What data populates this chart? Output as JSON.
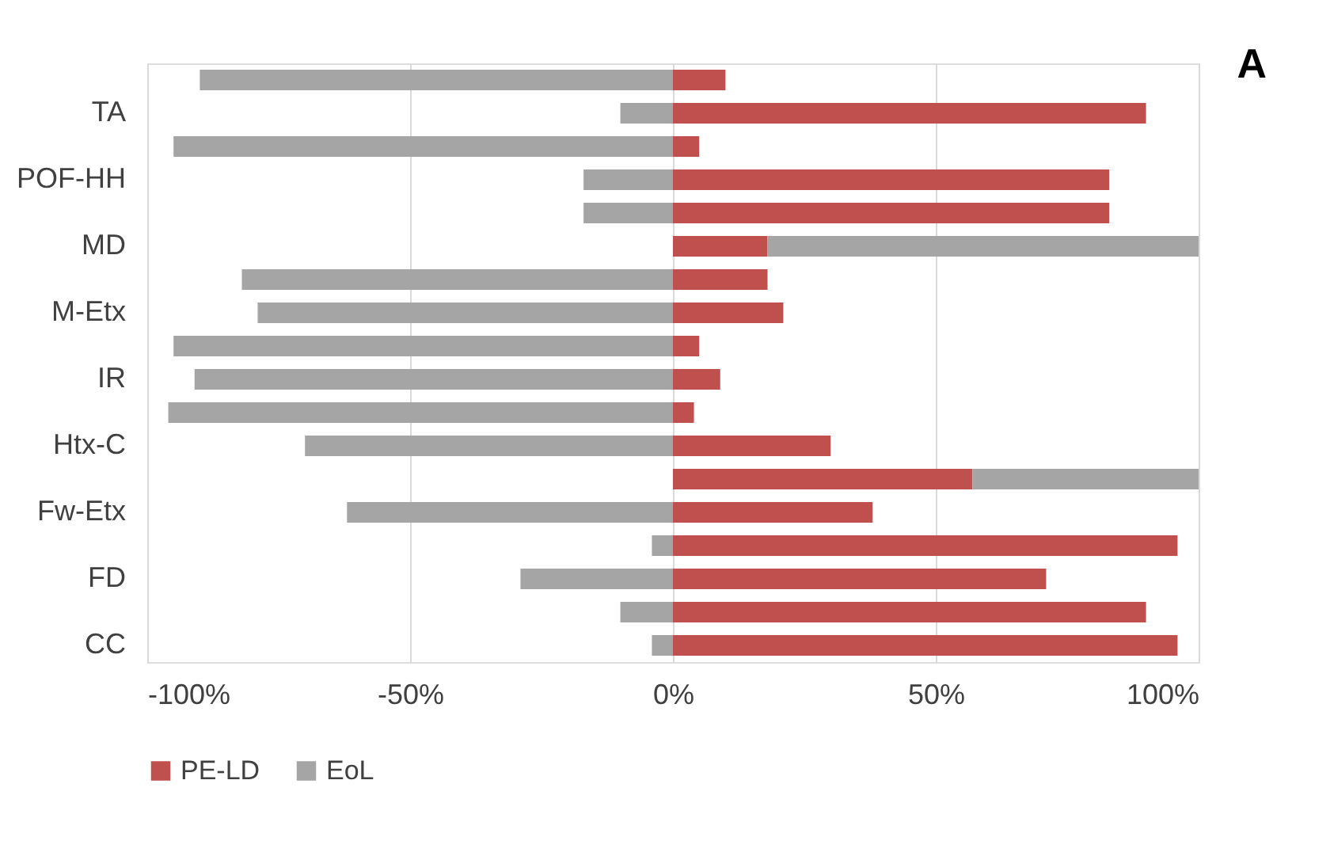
{
  "chart_data": {
    "type": "bar",
    "orientation": "horizontal",
    "stacked": true,
    "categories": [
      null,
      "TA",
      null,
      "POF-HH",
      null,
      "MD",
      null,
      "M-Etx",
      null,
      "IR",
      null,
      "Htx-C",
      null,
      "Fw-Etx",
      null,
      "FD",
      null,
      "CC"
    ],
    "series": [
      {
        "name": "PE-LD",
        "color": "#c0504d",
        "values": [
          10,
          90,
          5,
          83,
          83,
          18,
          18,
          21,
          5,
          9,
          4,
          30,
          57,
          38,
          96,
          71,
          90,
          96
        ]
      },
      {
        "name": "EoL",
        "color": "#a5a5a5",
        "values": [
          -90,
          -10,
          -95,
          -17,
          -17,
          82,
          -82,
          -79,
          -95,
          -91,
          -96,
          -70,
          43,
          -62,
          -4,
          -29,
          -10,
          -4
        ]
      }
    ],
    "xlim": [
      -100,
      100
    ],
    "xticks": [
      {
        "value": -100,
        "label": "-100%"
      },
      {
        "value": -50,
        "label": "-50%"
      },
      {
        "value": 0,
        "label": "0%"
      },
      {
        "value": 50,
        "label": "50%"
      },
      {
        "value": 100,
        "label": "100%"
      }
    ],
    "grid": "x",
    "legend": "bottom",
    "annotations": [
      "A"
    ]
  }
}
